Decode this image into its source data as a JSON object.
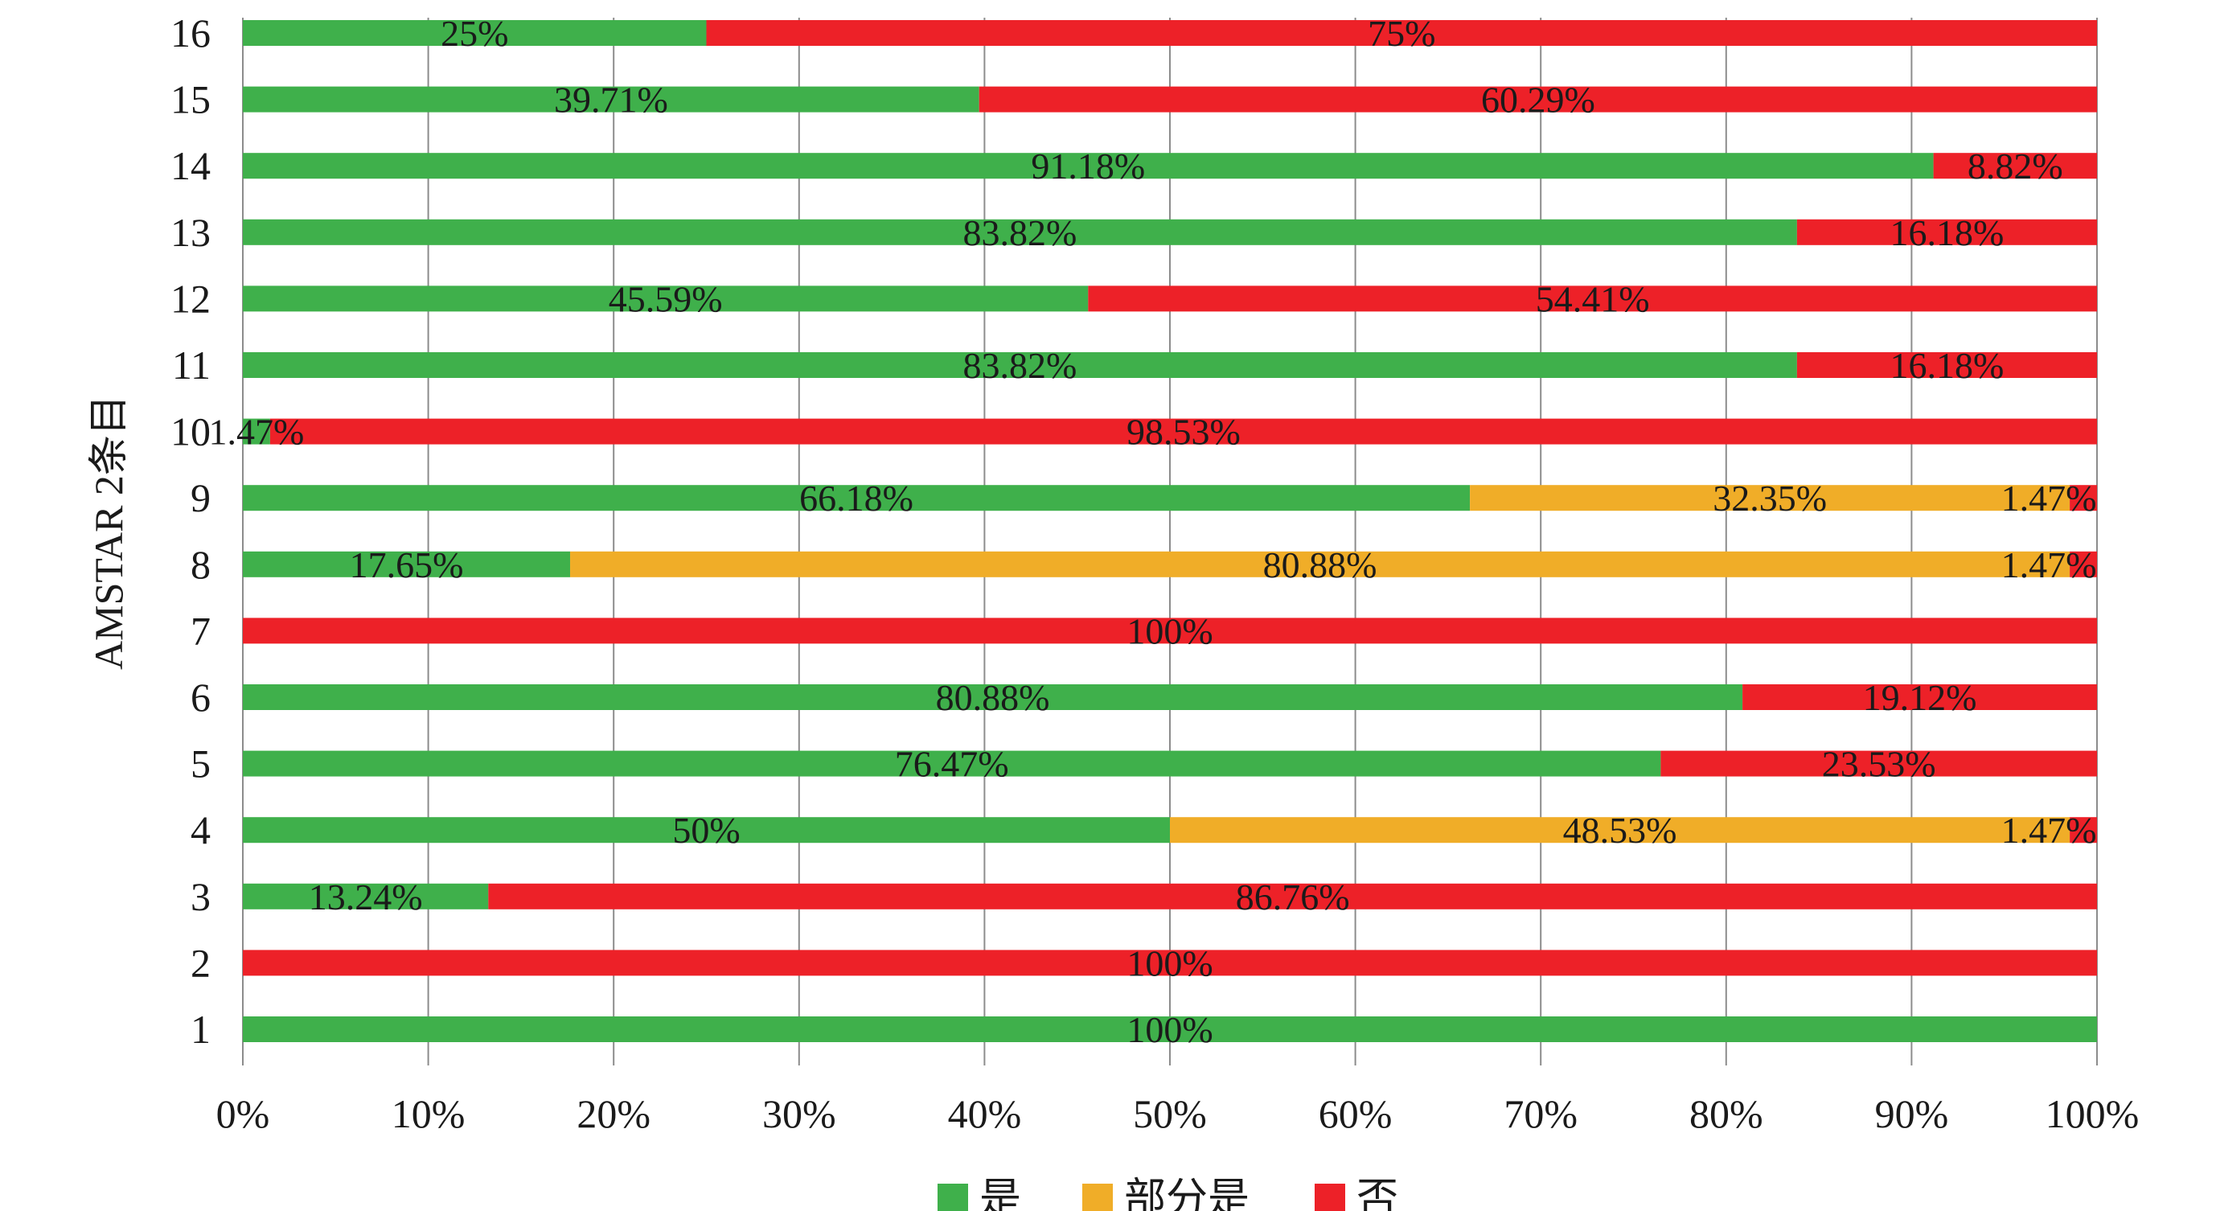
{
  "chart_data": {
    "type": "bar",
    "orientation": "horizontal",
    "stacked": true,
    "percent_stacked": true,
    "ylabel": "AMSTAR 2条目",
    "xlabel": "",
    "xlim": [
      0,
      100
    ],
    "x_ticks": [
      "0%",
      "10%",
      "20%",
      "30%",
      "40%",
      "50%",
      "60%",
      "70%",
      "80%",
      "90%",
      "100%"
    ],
    "grid": true,
    "legend_position": "bottom",
    "categories": [
      "1",
      "2",
      "3",
      "4",
      "5",
      "6",
      "7",
      "8",
      "9",
      "10",
      "11",
      "12",
      "13",
      "14",
      "15",
      "16"
    ],
    "series": [
      {
        "name": "是",
        "color": "#3fb04b",
        "values": [
          100,
          0,
          13.24,
          50,
          76.47,
          80.88,
          0,
          17.65,
          66.18,
          1.47,
          83.82,
          45.59,
          83.82,
          91.18,
          39.71,
          25
        ],
        "labels": [
          "100%",
          "",
          "13.24%",
          "50%",
          "76.47%",
          "80.88%",
          "",
          "17.65%",
          "66.18%",
          "1.47%",
          "83.82%",
          "45.59%",
          "83.82%",
          "91.18%",
          "39.71%",
          "25%"
        ]
      },
      {
        "name": "部分是",
        "color": "#f0ad28",
        "values": [
          0,
          0,
          0,
          48.53,
          0,
          0,
          0,
          80.88,
          32.35,
          0,
          0,
          0,
          0,
          0,
          0,
          0
        ],
        "labels": [
          "",
          "",
          "",
          "48.53%",
          "",
          "",
          "",
          "80.88%",
          "32.35%",
          "",
          "",
          "",
          "",
          "",
          "",
          ""
        ]
      },
      {
        "name": "否",
        "color": "#ed2128",
        "values": [
          0,
          100,
          86.76,
          1.47,
          23.53,
          19.12,
          100,
          1.47,
          1.47,
          98.53,
          16.18,
          54.41,
          16.18,
          8.82,
          60.29,
          75
        ],
        "labels": [
          "",
          "100%",
          "86.76%",
          "1.47%",
          "23.53%",
          "19.12%",
          "100%",
          "1.47%",
          "1.47%",
          "98.53%",
          "16.18%",
          "54.41%",
          "16.18%",
          "8.82%",
          "60.29%",
          "75%"
        ]
      }
    ]
  }
}
